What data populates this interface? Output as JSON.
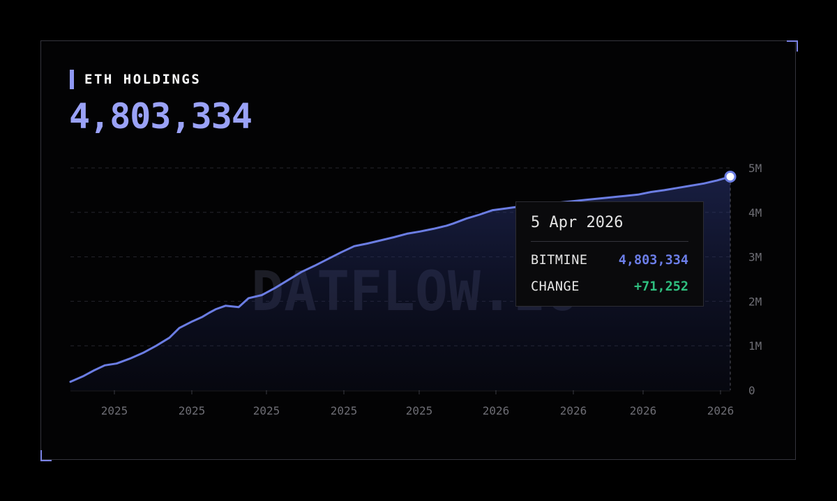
{
  "header": {
    "title": "ETH HOLDINGS",
    "value": "4,803,334"
  },
  "watermark": "DATFLOW.IO",
  "tooltip": {
    "date": "5 Apr 2026",
    "series_label": "BITMINE",
    "series_value": "4,803,334",
    "change_label": "CHANGE",
    "change_value": "+71,252"
  },
  "colors": {
    "line": "#6b7de3",
    "accent": "#8f98f5",
    "positive": "#2fbf7f",
    "background": "#000000"
  },
  "chart_data": {
    "type": "area",
    "series": [
      {
        "name": "BITMINE",
        "x": [
          0.0,
          0.02,
          0.035,
          0.052,
          0.07,
          0.09,
          0.11,
          0.13,
          0.15,
          0.165,
          0.185,
          0.2,
          0.21,
          0.22,
          0.235,
          0.255,
          0.27,
          0.29,
          0.31,
          0.33,
          0.35,
          0.37,
          0.39,
          0.41,
          0.43,
          0.45,
          0.47,
          0.49,
          0.51,
          0.53,
          0.55,
          0.57,
          0.58,
          0.6,
          0.62,
          0.64,
          0.66,
          0.68,
          0.7,
          0.72,
          0.74,
          0.76,
          0.78,
          0.8,
          0.82,
          0.84,
          0.86,
          0.88,
          0.9,
          0.92,
          0.94,
          0.96,
          0.98,
          1.0
        ],
        "values": [
          0.19,
          0.32,
          0.44,
          0.56,
          0.6,
          0.71,
          0.84,
          1.0,
          1.18,
          1.4,
          1.55,
          1.65,
          1.74,
          1.82,
          1.9,
          1.87,
          2.07,
          2.14,
          2.3,
          2.48,
          2.66,
          2.8,
          2.95,
          3.1,
          3.24,
          3.3,
          3.37,
          3.44,
          3.52,
          3.57,
          3.63,
          3.7,
          3.75,
          3.86,
          3.95,
          4.05,
          4.09,
          4.13,
          4.16,
          4.19,
          4.22,
          4.25,
          4.28,
          4.31,
          4.34,
          4.37,
          4.4,
          4.46,
          4.5,
          4.55,
          4.6,
          4.65,
          4.72,
          4.803334
        ]
      }
    ],
    "x_tick_labels": [
      "2025",
      "2025",
      "2025",
      "2025",
      "2025",
      "2026",
      "2026",
      "2026",
      "2026"
    ],
    "y_tick_labels": [
      "0",
      "1M",
      "2M",
      "3M",
      "4M",
      "5M"
    ],
    "y_unit": "M",
    "ylim": [
      0,
      5
    ],
    "grid": true,
    "legend": "none",
    "highlight": {
      "label": "5 Apr 2026",
      "value": 4803334,
      "change": 71252
    }
  }
}
